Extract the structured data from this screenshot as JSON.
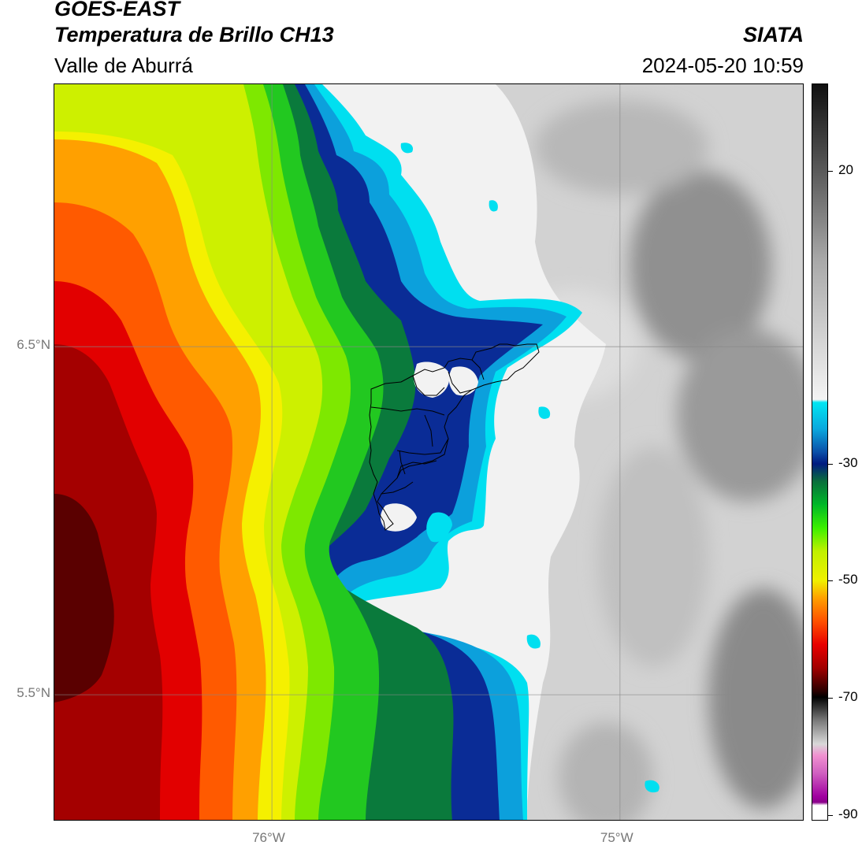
{
  "header": {
    "satellite": "GOES-EAST",
    "product": "Temperatura de Brillo CH13",
    "region": "Valle de Aburrá",
    "agency": "SIATA",
    "timestamp": "2024-05-20 10:59"
  },
  "map": {
    "lat_labels": [
      {
        "value": 6.5,
        "label": "6.5°N"
      },
      {
        "value": 5.5,
        "label": "5.5°N"
      }
    ],
    "lon_labels": [
      {
        "value": -76,
        "label": "76°W"
      },
      {
        "value": -75,
        "label": "75°W"
      }
    ],
    "lat_range": [
      5.136,
      7.254
    ],
    "lon_range": [
      -76.625,
      -74.47
    ],
    "gridlines": true,
    "overlay": "municipal-boundaries"
  },
  "colorbar": {
    "ticks": [
      {
        "value": 20,
        "label": "20"
      },
      {
        "value": -30,
        "label": "-30"
      },
      {
        "value": -50,
        "label": "-50"
      },
      {
        "value": -70,
        "label": "-70"
      },
      {
        "value": -90,
        "label": "-90"
      }
    ],
    "stops": [
      {
        "value": 35,
        "color": "#101010"
      },
      {
        "value": 20,
        "color": "#5a5a5a"
      },
      {
        "value": 5,
        "color": "#a8a8a8"
      },
      {
        "value": -19,
        "color": "#f4f4f4"
      },
      {
        "value": -19.5,
        "color": "#00e6f2"
      },
      {
        "value": -24,
        "color": "#0aa8de"
      },
      {
        "value": -28,
        "color": "#0a4fa8"
      },
      {
        "value": -30,
        "color": "#001a80"
      },
      {
        "value": -33,
        "color": "#0a6e3c"
      },
      {
        "value": -37,
        "color": "#00b828"
      },
      {
        "value": -41,
        "color": "#3cf000"
      },
      {
        "value": -45,
        "color": "#c0f000"
      },
      {
        "value": -50,
        "color": "#f0f000"
      },
      {
        "value": -53,
        "color": "#ffa000"
      },
      {
        "value": -57,
        "color": "#ff5000"
      },
      {
        "value": -61,
        "color": "#e80000"
      },
      {
        "value": -65,
        "color": "#a00000"
      },
      {
        "value": -69,
        "color": "#280000"
      },
      {
        "value": -70,
        "color": "#000000"
      },
      {
        "value": -74,
        "color": "#7a7a7a"
      },
      {
        "value": -78,
        "color": "#d8d8d8"
      },
      {
        "value": -80,
        "color": "#f090d0"
      },
      {
        "value": -83,
        "color": "#d060c0"
      },
      {
        "value": -87,
        "color": "#a000a0"
      },
      {
        "value": -88,
        "color": "#8a008a"
      },
      {
        "value": -88.5,
        "color": "#ffffff"
      },
      {
        "value": -91,
        "color": "#ffffff"
      }
    ]
  }
}
